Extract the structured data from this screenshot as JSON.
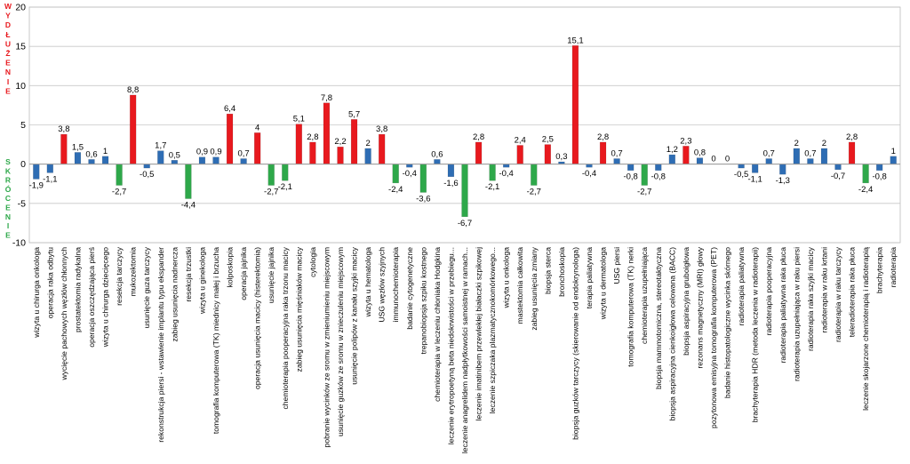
{
  "chart_data": {
    "type": "bar",
    "ylim": [
      -10,
      20
    ],
    "yticks": [
      -10,
      -5,
      0,
      5,
      10,
      15,
      20
    ],
    "grid": true,
    "title": "",
    "xlabel": "",
    "ylabel_top": "WYDŁUŻENIE",
    "ylabel_bottom": "SKRÓCENIE",
    "colors": {
      "blue": "#2E6DB4",
      "red": "#E8191E",
      "green": "#2EA84A"
    },
    "categories": [
      "wizyta u chirurga onkologa",
      "operacja raka odbytu",
      "wycięcie pachowych węzłów chłonnych",
      "prostatektomia radykalna",
      "operacja oszczędzająca pierś",
      "wizyta u chirurga dziecięcego",
      "resekcja tarczycy",
      "mukozektomia",
      "usunięcie guza tarczycy",
      "rekonstrukcja piersi - wstawienie implantu typu ekspander",
      "zabieg usunięcia nadnercza",
      "resekcja trzustki",
      "wizyta u ginekologa",
      "tomografia komputerowa (TK) miednicy małej i brzucha",
      "kolposkopia",
      "operacja jajnika",
      "operacja usunięcia macicy (histerektomia)",
      "usunięcie jajnika",
      "chemioterapia pooperacyjna raka trzonu macicy",
      "zabieg usunięcia mięśniaków macicy",
      "cytologia",
      "pobranie wycinków ze sromu w zmieniumieniu miejscowym",
      "usunięcie guzków ze sromu w znieczuleniu miejscowym",
      "usunięcie polipów z kanału szyjki macicy",
      "wizyta u hematologa",
      "USG węzłów szyjnych",
      "immunochemioterapia",
      "badanie cytogenetyczne",
      "trepanobiopsja szpiku kostnego",
      "chemioterapia w leczeniu chłoniaka Hodgkina",
      "leczenie erytropoetyną beta niedokrwistości w przebiegu...",
      "leczenie anagrelidem nadpłytkowości samoistnej w ramach...",
      "leczenie imatinibem przewlekłej białaczki szpikowej",
      "leczenie szpiczaka plazmatycznokomórkowego...",
      "wizyta u onkologa",
      "mastektomia całkowita",
      "zabieg usunięcia zmiany",
      "biopsja sterca",
      "bronchoskopia",
      "biopsja guzków tarczycy (skierowanie od endokrynologa)",
      "terapia paliatywna",
      "wizyta u dermatologa",
      "USG piersi",
      "tomografia komputerowa (TK) nerki",
      "chemioterapia uzupełniająca",
      "biopsja mammotomiczna, stereotaktyczna",
      "biopsja aspiracyjna cienkoigłowa celowana (BACC)",
      "biopsja aspiracyjna gruboigłowa",
      "rezonans magnetyczny (MRI) głowy",
      "pozytonowa emisyjna tomografia komputerowa (PET)",
      "badanie histopatologiczne wycinka skórnego",
      "radioterapia paliatywna",
      "brachyterapia HDR (metoda leczenia w radioterapii)",
      "radioterapia pooperacyjna",
      "radioterapia paliatywna raka płuca",
      "radioterapia uzupełniająca w raku piersi",
      "radioterapia raka szyjki macicy",
      "radioterapia w raku krtani",
      "radioterapia w raku tarczycy",
      "teleradioterapia raka płuca",
      "leczenie skojarzone chemioterapią i radioterapią",
      "brachyterapia",
      "radioterapia"
    ],
    "values": [
      -1.9,
      -1.1,
      3.8,
      1.5,
      0.6,
      1,
      -2.7,
      8.8,
      -0.5,
      1.7,
      0.5,
      -4.4,
      0.9,
      0.9,
      6.4,
      0.7,
      4,
      -2.7,
      -2.1,
      5.1,
      2.8,
      7.8,
      2.2,
      5.7,
      2,
      3.8,
      -2.4,
      -0.4,
      -3.6,
      0.6,
      -1.6,
      -6.7,
      2.8,
      -2.1,
      -0.4,
      2.4,
      -2.7,
      2.5,
      0.3,
      15.1,
      -0.4,
      2.8,
      0.7,
      -0.8,
      -2.7,
      -0.8,
      1.2,
      2.3,
      0.8,
      0,
      0,
      -0.5,
      -1.1,
      0.7,
      -1.3,
      2,
      0.7,
      2,
      -0.7,
      2.8,
      -2.4,
      -0.8,
      1
    ],
    "value_labels": [
      "-1,9",
      "-1,1",
      "3,8",
      "1,5",
      "0,6",
      "1",
      "-2,7",
      "8,8",
      "-0,5",
      "1,7",
      "0,5",
      "-4,4",
      "0,9",
      "0,9",
      "6,4",
      "0,7",
      "4",
      "-2,7",
      "-2,1",
      "5,1",
      "2,8",
      "7,8",
      "2,2",
      "5,7",
      "2",
      "3,8",
      "-2,4",
      "-0,4",
      "-3,6",
      "0,6",
      "-1,6",
      "-6,7",
      "2,8",
      "-2,1",
      "-0,4",
      "2,4",
      "-2,7",
      "2,5",
      "0,3",
      "15,1",
      "-0,4",
      "2,8",
      "0,7",
      "-0,8",
      "-2,7",
      "-0,8",
      "1,2",
      "2,3",
      "0,8",
      "0",
      "0",
      "-0,5",
      "-1,1",
      "0,7",
      "-1,3",
      "2",
      "0,7",
      "2",
      "-0,7",
      "2,8",
      "-2,4",
      "-0,8",
      "1"
    ],
    "bar_colors": [
      "blue",
      "blue",
      "red",
      "blue",
      "blue",
      "blue",
      "green",
      "red",
      "blue",
      "blue",
      "blue",
      "green",
      "blue",
      "blue",
      "red",
      "blue",
      "red",
      "green",
      "green",
      "red",
      "red",
      "red",
      "red",
      "red",
      "blue",
      "red",
      "green",
      "blue",
      "green",
      "blue",
      "blue",
      "green",
      "red",
      "green",
      "blue",
      "red",
      "green",
      "red",
      "blue",
      "red",
      "blue",
      "red",
      "blue",
      "blue",
      "green",
      "blue",
      "blue",
      "red",
      "blue",
      "blue",
      "blue",
      "blue",
      "blue",
      "blue",
      "blue",
      "blue",
      "blue",
      "blue",
      "blue",
      "red",
      "green",
      "blue",
      "blue"
    ]
  }
}
